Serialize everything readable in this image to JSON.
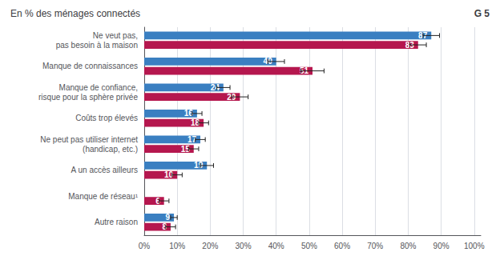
{
  "chart_data": {
    "type": "bar",
    "orientation": "horizontal",
    "title": "En % des ménages connectés",
    "annotations": [
      "G 5"
    ],
    "categories": [
      "Ne veut pas,\npas besoin à la maison",
      "Manque de connaissances",
      "Manque de confiance,\nrisque pour la sphère privée",
      "Coûts trop élevés",
      "Ne peut pas utiliser internet\n(handicap, etc.)",
      "A un accès ailleurs",
      "Manque de réseau¹",
      "Autre raison"
    ],
    "series": [
      {
        "color": "#3a7fc1",
        "values": [
          87,
          40,
          24,
          16,
          17,
          19,
          0,
          9
        ],
        "errors": [
          2.5,
          2.5,
          2.0,
          1.5,
          1.5,
          2.0,
          0,
          1.0
        ]
      },
      {
        "color": "#b5174e",
        "values": [
          83,
          51,
          29,
          18,
          15,
          10,
          6,
          8
        ],
        "errors": [
          2.5,
          3.5,
          2.5,
          1.5,
          1.5,
          1.5,
          1.5,
          1.5
        ]
      }
    ],
    "xlim": [
      0,
      102
    ],
    "xticks": [
      {
        "value": 0,
        "label": "0%"
      },
      {
        "value": 10,
        "label": "10%"
      },
      {
        "value": 20,
        "label": "20%"
      },
      {
        "value": 30,
        "label": "30%"
      },
      {
        "value": 40,
        "label": "40%"
      },
      {
        "value": 50,
        "label": "50%"
      },
      {
        "value": 60,
        "label": "60%"
      },
      {
        "value": 70,
        "label": "70%"
      },
      {
        "value": 80,
        "label": "80%"
      },
      {
        "value": 90,
        "label": "90%"
      },
      {
        "value": 100,
        "label": "100%"
      }
    ],
    "grid": true,
    "data_labels": true
  }
}
